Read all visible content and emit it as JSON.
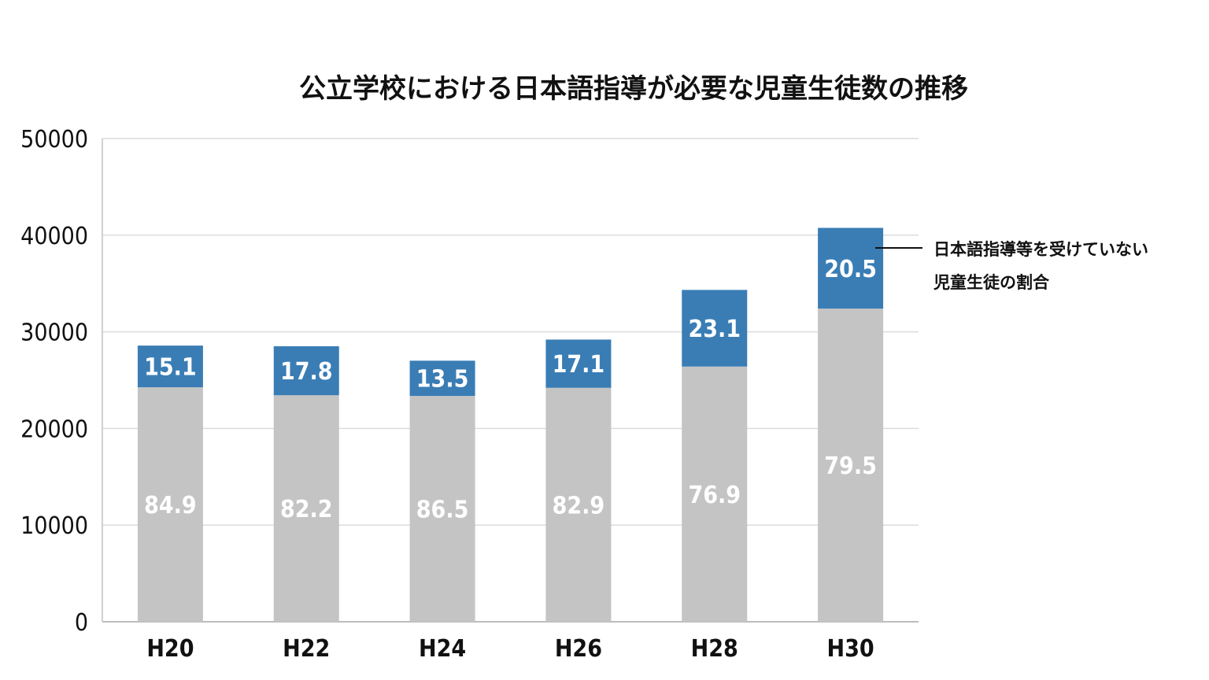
{
  "chart_data": {
    "type": "bar",
    "stacked": true,
    "title": "公立学校における日本語指導が必要な児童生徒数の推移",
    "categories": [
      "H20",
      "H22",
      "H24",
      "H26",
      "H28",
      "H30"
    ],
    "totals": [
      28575,
      28511,
      27013,
      29198,
      34335,
      40755
    ],
    "series": [
      {
        "color": "#c4c4c4",
        "labels": [
          "84.9",
          "82.2",
          "86.5",
          "82.9",
          "76.9",
          "79.5"
        ]
      },
      {
        "color": "#3a7db5",
        "labels": [
          "15.1",
          "17.8",
          "13.5",
          "17.1",
          "23.1",
          "20.5"
        ]
      }
    ],
    "ylim": [
      0,
      50000
    ],
    "yticks": [
      "0",
      "10000",
      "20000",
      "30000",
      "40000",
      "50000"
    ],
    "grid": true,
    "annotation": {
      "line1": "日本語指導等を受けていない",
      "line2": "児童生徒の割合"
    }
  }
}
